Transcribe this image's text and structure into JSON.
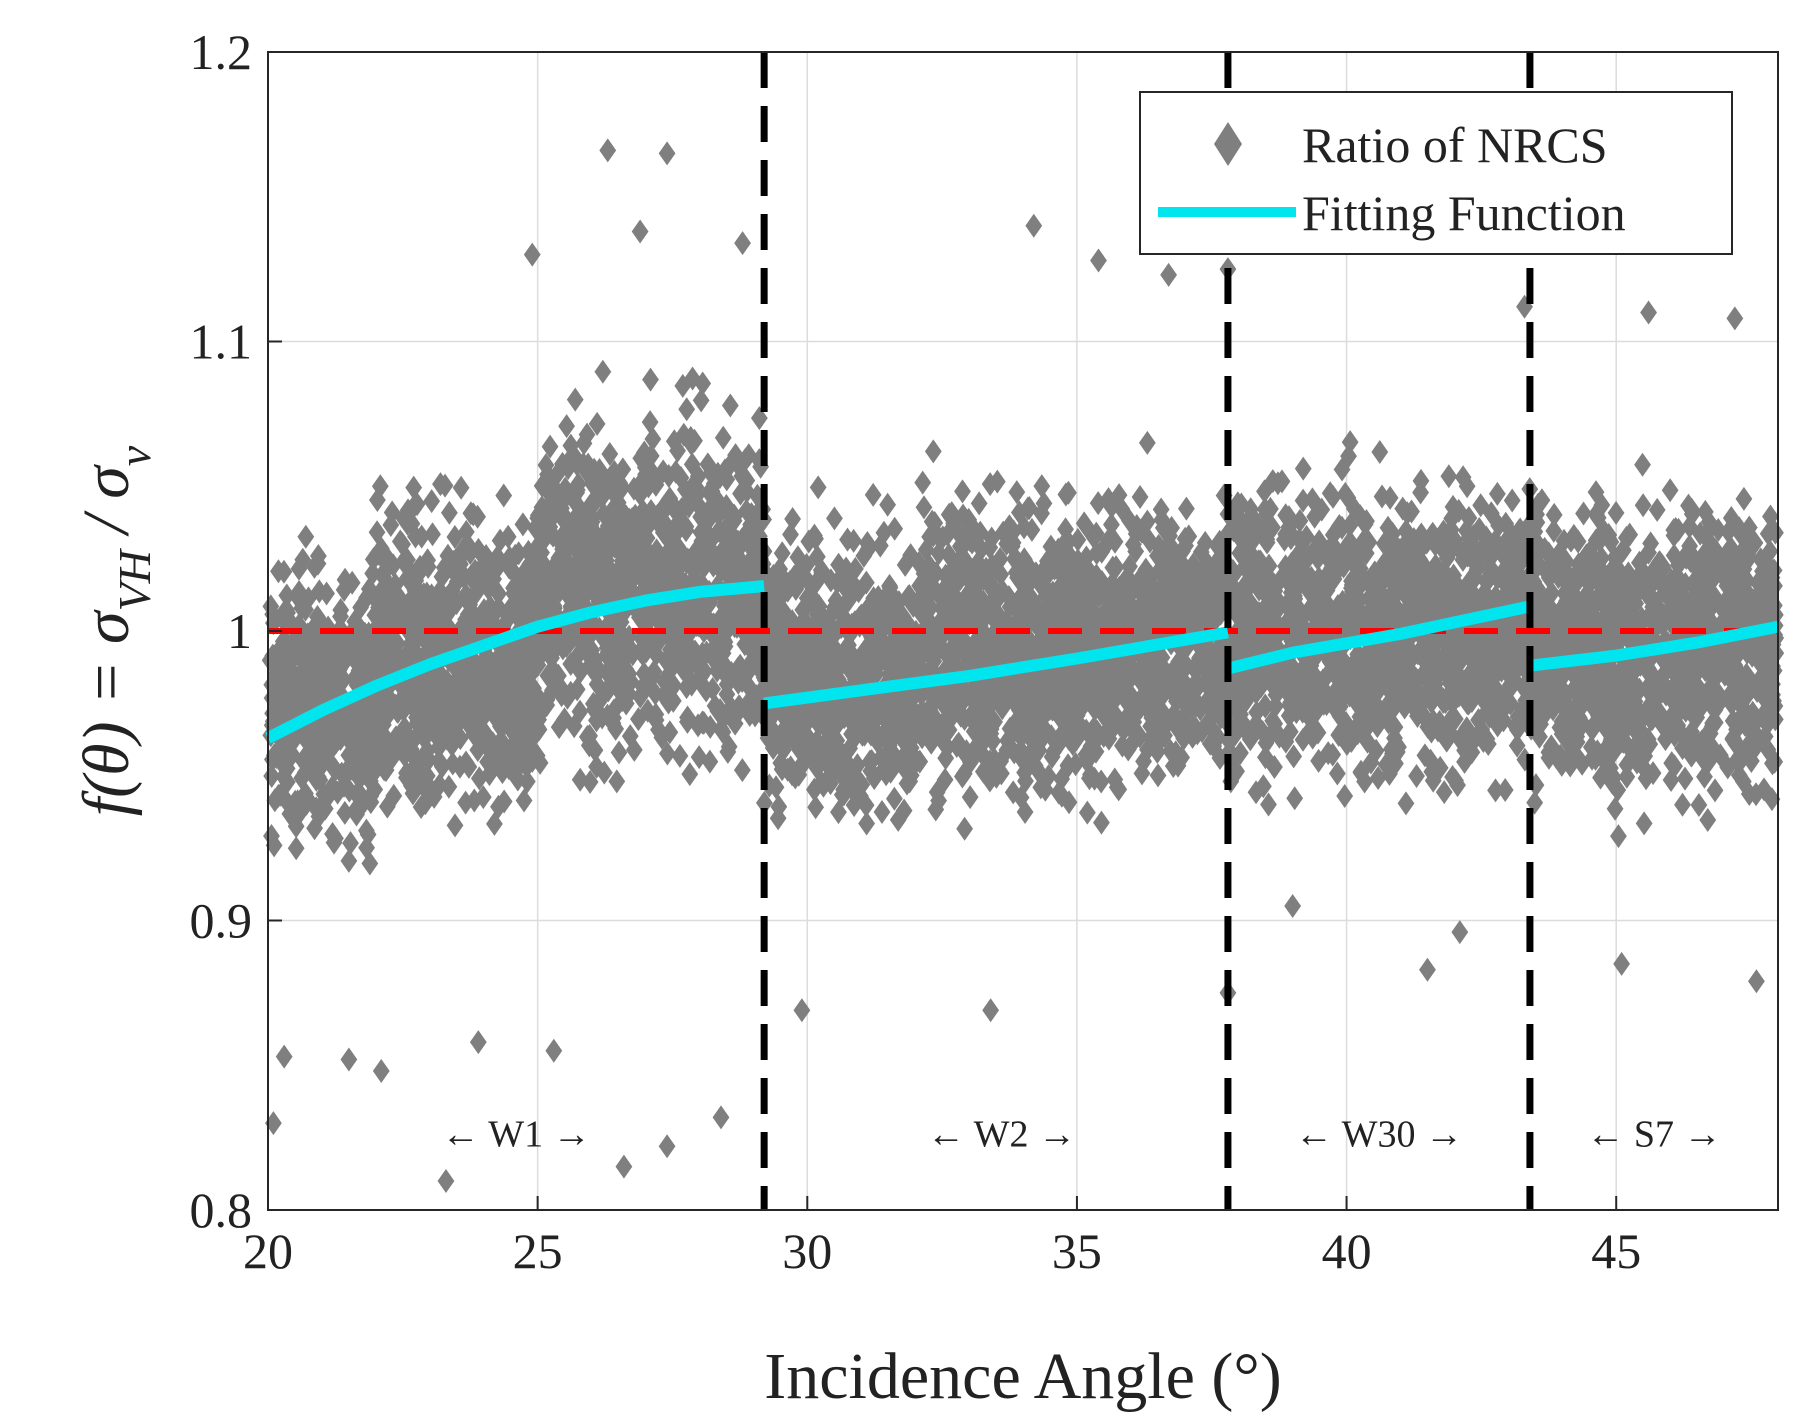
{
  "chart_data": {
    "type": "scatter",
    "xlabel": "Incidence Angle (°)",
    "ylabel": {
      "lhs": "f(θ) = σ",
      "sub1": "VH",
      "mid": " / σ",
      "sub2": "v"
    },
    "xlim": [
      20,
      48
    ],
    "ylim": [
      0.8,
      1.2
    ],
    "xticks": [
      20,
      25,
      30,
      35,
      40,
      45
    ],
    "xtick_labels": [
      "20",
      "25",
      "30",
      "35",
      "40",
      "45"
    ],
    "yticks": [
      0.8,
      0.9,
      1.0,
      1.1,
      1.2
    ],
    "ytick_labels": [
      "0.8",
      "0.9",
      "1",
      "1.1",
      "1.2"
    ],
    "grid": true,
    "legend": {
      "position": "top-right",
      "entries": [
        {
          "label": "Ratio of NRCS",
          "marker": "diamond",
          "color": "#7f7f7f"
        },
        {
          "label": "Fitting Function",
          "marker": "line",
          "color": "#00e5ee"
        }
      ]
    },
    "reference_line": {
      "y": 1.0,
      "color": "#ff0000",
      "style": "dashed"
    },
    "boundaries": [
      29.2,
      37.8,
      43.4
    ],
    "segments": [
      {
        "label": "W1",
        "range": [
          20,
          29.2
        ],
        "label_x": 24.6,
        "label_y": 0.822,
        "fit": [
          [
            20,
            0.963
          ],
          [
            21,
            0.9725
          ],
          [
            22,
            0.981
          ],
          [
            23,
            0.9885
          ],
          [
            24,
            0.995
          ],
          [
            25,
            1.0015
          ],
          [
            26,
            1.0065
          ],
          [
            27,
            1.0105
          ],
          [
            28,
            1.0135
          ],
          [
            29.2,
            1.0155
          ]
        ]
      },
      {
        "label": "W2",
        "range": [
          29.2,
          37.8
        ],
        "label_x": 33.6,
        "label_y": 0.822,
        "fit": [
          [
            29.2,
            0.975
          ],
          [
            31,
            0.9795
          ],
          [
            33,
            0.9845
          ],
          [
            35,
            0.9905
          ],
          [
            37.8,
            0.9995
          ]
        ]
      },
      {
        "label": "W30",
        "range": [
          37.8,
          43.4
        ],
        "label_x": 40.6,
        "label_y": 0.822,
        "fit": [
          [
            37.8,
            0.987
          ],
          [
            39,
            0.9925
          ],
          [
            41,
            0.999
          ],
          [
            43.4,
            1.0085
          ]
        ]
      },
      {
        "label": "S7",
        "range": [
          43.4,
          48
        ],
        "label_x": 45.7,
        "label_y": 0.822,
        "fit": [
          [
            43.4,
            0.988
          ],
          [
            45,
            0.9915
          ],
          [
            46.5,
            0.996
          ],
          [
            48,
            1.0015
          ]
        ]
      }
    ],
    "scatter_bands": [
      {
        "x_range": [
          20,
          22
        ],
        "y_center": 0.975,
        "spread": 0.085
      },
      {
        "x_range": [
          22,
          25
        ],
        "y_center": 0.99,
        "spread": 0.095
      },
      {
        "x_range": [
          25,
          29.2
        ],
        "y_center": 1.015,
        "spread": 0.1
      },
      {
        "x_range": [
          29.2,
          32
        ],
        "y_center": 0.985,
        "spread": 0.085
      },
      {
        "x_range": [
          32,
          37.8
        ],
        "y_center": 0.995,
        "spread": 0.09
      },
      {
        "x_range": [
          37.8,
          43.4
        ],
        "y_center": 1.0,
        "spread": 0.09
      },
      {
        "x_range": [
          43.4,
          48
        ],
        "y_center": 0.995,
        "spread": 0.09
      }
    ],
    "scatter_outliers": [
      [
        20.1,
        0.83
      ],
      [
        20.3,
        0.853
      ],
      [
        21.5,
        0.852
      ],
      [
        22.1,
        0.848
      ],
      [
        23.3,
        0.81
      ],
      [
        23.9,
        0.858
      ],
      [
        25.3,
        0.855
      ],
      [
        26.3,
        1.166
      ],
      [
        27.4,
        1.165
      ],
      [
        26.6,
        0.815
      ],
      [
        27.4,
        0.822
      ],
      [
        26.9,
        1.138
      ],
      [
        28.4,
        0.832
      ],
      [
        28.8,
        1.134
      ],
      [
        24.9,
        1.13
      ],
      [
        29.9,
        0.869
      ],
      [
        33.4,
        0.869
      ],
      [
        34.2,
        1.14
      ],
      [
        35.4,
        1.128
      ],
      [
        36.7,
        1.123
      ],
      [
        37.8,
        1.125
      ],
      [
        37.8,
        0.875
      ],
      [
        41.5,
        0.883
      ],
      [
        42.1,
        0.896
      ],
      [
        43.3,
        1.112
      ],
      [
        45.6,
        1.11
      ],
      [
        47.2,
        1.108
      ],
      [
        47.6,
        0.879
      ],
      [
        45.1,
        0.885
      ],
      [
        39.0,
        0.905
      ]
    ]
  }
}
